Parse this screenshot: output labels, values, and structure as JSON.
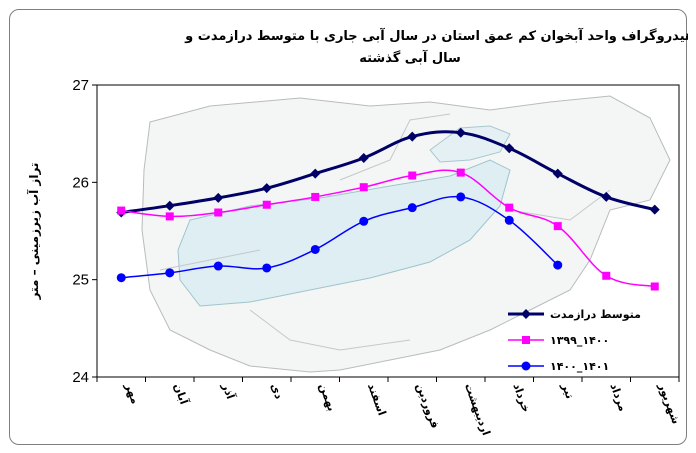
{
  "chart_data": {
    "type": "line",
    "title_line1": "مقایسه هیدروگراف واحد آبخوان کم عمق استان در سال آبی جاری با متوسط درازمدت و",
    "title_line2": "سال آبی گذشته",
    "ylabel": "تراز آب زیرزمینی – متر",
    "xlabel": "",
    "ylim": [
      24,
      27
    ],
    "yticks": [
      24,
      25,
      26,
      27
    ],
    "categories": [
      "مهر",
      "آبان",
      "آذر",
      "دی",
      "بهمن",
      "اسفند",
      "فروردین",
      "اردیبهشت",
      "خرداد",
      "تیر",
      "مرداد",
      "شهریور"
    ],
    "grid": false,
    "legend_position": "bottom-right",
    "series": [
      {
        "name": "متوسط درازمدت",
        "color": "#000066",
        "marker": "diamond",
        "values": [
          25.69,
          25.76,
          25.84,
          25.94,
          26.09,
          26.25,
          26.47,
          26.51,
          26.35,
          26.09,
          25.85,
          25.72
        ]
      },
      {
        "name": "۱۳۹۹_۱۴۰۰",
        "color": "#ff00ff",
        "marker": "square",
        "values": [
          25.71,
          25.65,
          25.69,
          25.77,
          25.85,
          25.95,
          26.07,
          26.1,
          25.74,
          25.55,
          25.04,
          24.93
        ]
      },
      {
        "name": "۱۴۰۰_۱۴۰۱",
        "color": "#0000ff",
        "marker": "circle",
        "values": [
          25.02,
          25.07,
          25.14,
          25.12,
          25.31,
          25.6,
          25.74,
          25.85,
          25.61,
          25.15,
          null,
          null
        ]
      }
    ]
  }
}
